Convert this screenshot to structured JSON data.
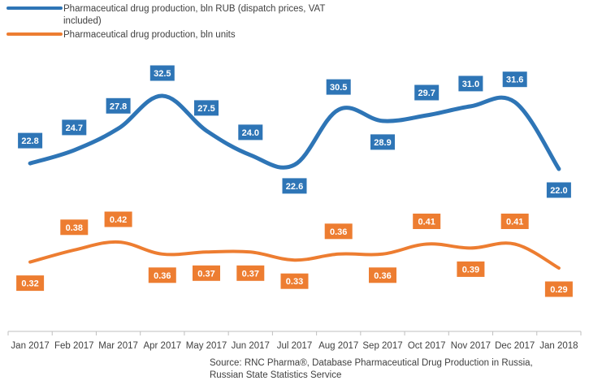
{
  "chart_data": {
    "type": "line",
    "categories": [
      "Jan 2017",
      "Feb 2017",
      "Mar 2017",
      "Apr 2017",
      "May 2017",
      "Jun 2017",
      "Jul 2017",
      "Aug 2017",
      "Sep 2017",
      "Oct 2017",
      "Nov 2017",
      "Dec 2017",
      "Jan 2018"
    ],
    "series": [
      {
        "name": "Pharmaceutical drug production, bln RUB (dispatch prices, VAT included)",
        "legend_lines": [
          "Pharmaceutical drug production, bln RUB (dispatch prices, VAT",
          "included)"
        ],
        "values": [
          22.8,
          24.7,
          27.8,
          32.5,
          27.5,
          24.0,
          22.6,
          30.5,
          28.9,
          29.7,
          31.0,
          31.6,
          22.0
        ],
        "labels": [
          "22.8",
          "24.7",
          "27.8",
          "32.5",
          "27.5",
          "24.0",
          "22.6",
          "30.5",
          "28.9",
          "29.7",
          "31.0",
          "31.6",
          "22.0"
        ],
        "color": "#2E75B6"
      },
      {
        "name": "Pharmaceutical drug production, bln units",
        "legend_lines": [
          "Pharmaceutical drug production, bln units"
        ],
        "values": [
          0.32,
          0.38,
          0.42,
          0.36,
          0.37,
          0.37,
          0.33,
          0.36,
          0.36,
          0.41,
          0.39,
          0.41,
          0.29
        ],
        "labels": [
          "0.32",
          "0.38",
          "0.42",
          "0.36",
          "0.37",
          "0.37",
          "0.33",
          "0.36",
          "0.36",
          "0.41",
          "0.39",
          "0.41",
          "0.29"
        ],
        "color": "#ED7D31"
      }
    ],
    "legend": "top-left",
    "grid": false,
    "title": "",
    "xlabel": "",
    "ylabel": ""
  },
  "source": {
    "lines": [
      "Source: RNC Pharma®, Database Pharmaceutical Drug Production in Russia,",
      "Russian State Statistics Service"
    ]
  }
}
